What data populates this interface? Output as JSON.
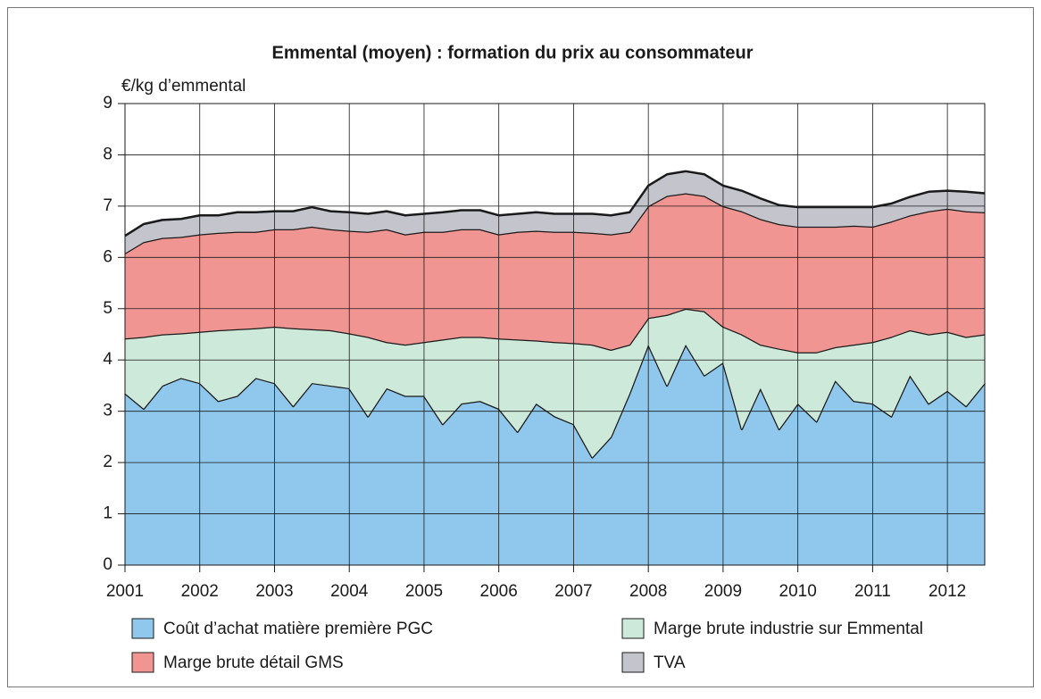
{
  "chart_data": {
    "type": "stacked_area",
    "title": "Emmental (moyen) : formation du prix au consommateur",
    "y_label": "€/kg d’emmental",
    "x": [
      2001,
      2001.25,
      2001.5,
      2001.75,
      2002,
      2002.25,
      2002.5,
      2002.75,
      2003,
      2003.25,
      2003.5,
      2003.75,
      2004,
      2004.25,
      2004.5,
      2004.75,
      2005,
      2005.25,
      2005.5,
      2005.75,
      2006,
      2006.25,
      2006.5,
      2006.75,
      2007,
      2007.25,
      2007.5,
      2007.75,
      2008,
      2008.25,
      2008.5,
      2008.75,
      2009,
      2009.25,
      2009.5,
      2009.75,
      2010,
      2010.25,
      2010.5,
      2010.75,
      2011,
      2011.25,
      2011.5,
      2011.75,
      2012,
      2012.25,
      2012.5
    ],
    "series": [
      {
        "name": "Coût d’achat matière première PGC",
        "color": "#8fc8ec",
        "values": [
          3.35,
          3.05,
          3.5,
          3.65,
          3.55,
          3.2,
          3.3,
          3.65,
          3.55,
          3.1,
          3.55,
          3.5,
          3.45,
          2.9,
          3.45,
          3.3,
          3.3,
          2.75,
          3.15,
          3.2,
          3.05,
          2.6,
          3.15,
          2.9,
          2.75,
          2.1,
          2.5,
          3.35,
          4.3,
          3.5,
          4.3,
          3.7,
          3.95,
          2.65,
          3.45,
          2.65,
          3.15,
          2.8,
          3.6,
          3.2,
          3.15,
          2.9,
          3.7,
          3.15,
          3.4,
          3.1,
          3.55
        ]
      },
      {
        "name": "Marge brute industrie sur Emmental",
        "color": "#cde9d9",
        "values": [
          1.07,
          1.4,
          1.0,
          0.87,
          1.0,
          1.38,
          1.3,
          0.97,
          1.1,
          1.52,
          1.05,
          1.08,
          1.07,
          1.55,
          0.9,
          1.0,
          1.05,
          1.65,
          1.3,
          1.25,
          1.37,
          1.8,
          1.23,
          1.45,
          1.58,
          2.2,
          1.7,
          0.95,
          0.52,
          1.38,
          0.7,
          1.25,
          0.7,
          1.85,
          0.85,
          1.57,
          1.0,
          1.35,
          0.65,
          1.1,
          1.2,
          1.55,
          0.88,
          1.35,
          1.15,
          1.35,
          0.95
        ]
      },
      {
        "name": "Marge brute détail GMS",
        "color": "#f19592",
        "values": [
          1.66,
          1.85,
          1.88,
          1.88,
          1.9,
          1.9,
          1.9,
          1.88,
          1.9,
          1.93,
          2.0,
          1.97,
          2.0,
          2.05,
          2.2,
          2.15,
          2.15,
          2.1,
          2.1,
          2.1,
          2.03,
          2.1,
          2.14,
          2.15,
          2.17,
          2.18,
          2.25,
          2.2,
          2.18,
          2.32,
          2.25,
          2.25,
          2.35,
          2.4,
          2.45,
          2.43,
          2.45,
          2.45,
          2.35,
          2.32,
          2.25,
          2.25,
          2.24,
          2.4,
          2.4,
          2.45,
          2.38
        ]
      },
      {
        "name": "TVA",
        "color": "#c3c4cc",
        "values": [
          0.34,
          0.35,
          0.35,
          0.35,
          0.37,
          0.34,
          0.38,
          0.38,
          0.35,
          0.35,
          0.38,
          0.35,
          0.36,
          0.35,
          0.35,
          0.37,
          0.35,
          0.38,
          0.37,
          0.37,
          0.37,
          0.35,
          0.36,
          0.35,
          0.35,
          0.37,
          0.37,
          0.38,
          0.4,
          0.42,
          0.43,
          0.42,
          0.4,
          0.4,
          0.4,
          0.37,
          0.38,
          0.38,
          0.38,
          0.36,
          0.38,
          0.35,
          0.36,
          0.38,
          0.35,
          0.38,
          0.37
        ]
      }
    ],
    "xlim": [
      2001,
      2012.5
    ],
    "xticks": [
      2001,
      2002,
      2003,
      2004,
      2005,
      2006,
      2007,
      2008,
      2009,
      2010,
      2011,
      2012
    ],
    "ylim": [
      0,
      9
    ],
    "yticks": [
      0,
      1,
      2,
      3,
      4,
      5,
      6,
      7,
      8,
      9
    ],
    "grid": true
  }
}
